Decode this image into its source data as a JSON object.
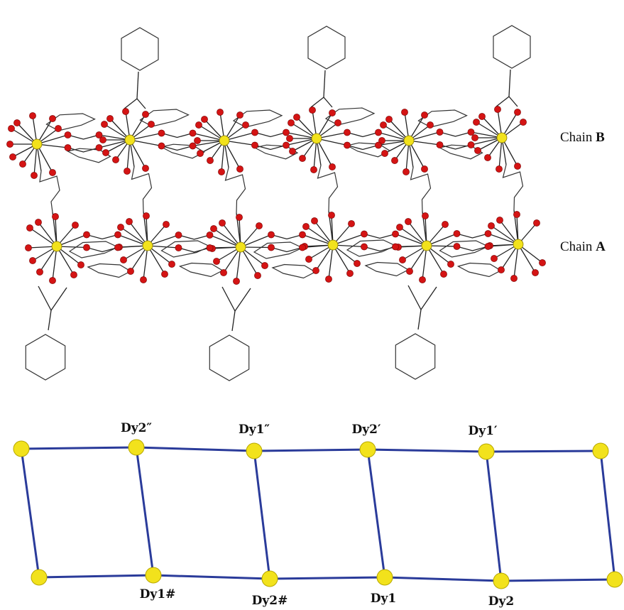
{
  "top_panel": {
    "chains": [
      {
        "id": "B",
        "prefix": "Chain ",
        "letter": "B"
      },
      {
        "id": "A",
        "prefix": "Chain ",
        "letter": "A"
      }
    ]
  },
  "bottom_panel": {
    "top_row_labels": [
      "Dy2″",
      "Dy1″",
      "Dy2′",
      "Dy1′"
    ],
    "bottom_row_labels": [
      "Dy1#",
      "Dy2#",
      "Dy1",
      "Dy2"
    ]
  },
  "colors": {
    "metal": "#f2e21c",
    "oxygen": "#d41414",
    "bond": "#222222",
    "ladder_edge": "#2a3b9a"
  }
}
